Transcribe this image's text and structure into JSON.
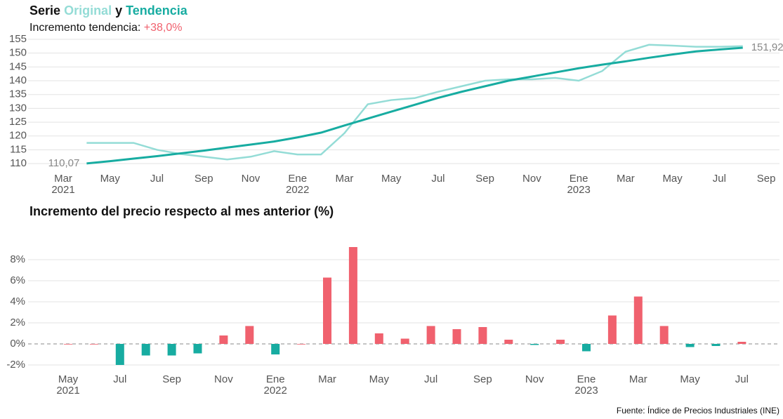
{
  "chart_data": [
    {
      "type": "line",
      "title": [
        "Serie",
        "Original",
        "y",
        "Tendencia"
      ],
      "subtitle": [
        "Incremento tendencia:",
        "+38,0%"
      ],
      "categories": [
        "Mar 2021",
        null,
        "May",
        null,
        "Jul",
        null,
        "Sep",
        null,
        "Nov",
        null,
        "Ene 2022",
        null,
        "Mar",
        null,
        "May",
        null,
        "Jul",
        null,
        "Sep",
        null,
        "Nov",
        null,
        "Ene 2023",
        null,
        "Mar",
        null,
        "May",
        null,
        "Jul",
        null,
        "Sep"
      ],
      "series": [
        {
          "name": "Original",
          "color": "#94dcd6",
          "values": [
            null,
            117.5,
            117.5,
            117.5,
            115,
            113.5,
            112.5,
            111.5,
            112.5,
            114.5,
            113.3,
            113.3,
            121,
            131.5,
            133,
            133.7,
            136,
            138,
            140,
            140.5,
            140.5,
            141,
            140,
            143.5,
            150.5,
            153,
            152.7,
            152.3,
            152.3,
            152.5,
            null
          ]
        },
        {
          "name": "Tendencia",
          "color": "#17aca1",
          "values": [
            null,
            110.07,
            110.9,
            111.8,
            112.7,
            113.7,
            114.7,
            115.8,
            116.9,
            118,
            119.5,
            121.2,
            123.8,
            126.3,
            128.8,
            131.3,
            133.8,
            136,
            138,
            140,
            141.5,
            143,
            144.5,
            145.8,
            147,
            148.3,
            149.5,
            150.6,
            151.3,
            151.92,
            null
          ],
          "value_labels": [
            null,
            "110,07",
            null,
            null,
            null,
            null,
            null,
            null,
            null,
            null,
            null,
            null,
            null,
            null,
            null,
            null,
            null,
            null,
            null,
            null,
            null,
            null,
            null,
            null,
            null,
            null,
            null,
            null,
            null,
            "151,92",
            null
          ]
        }
      ],
      "ylim": [
        108,
        156
      ],
      "yticks": [
        110,
        115,
        120,
        125,
        130,
        135,
        140,
        145,
        150,
        155
      ],
      "grid": true
    },
    {
      "type": "bar",
      "title": "Incremento del precio respecto al mes anterior (%)",
      "categories": [
        "May 2021",
        null,
        "Jul",
        null,
        "Sep",
        null,
        "Nov",
        null,
        "Ene 2022",
        null,
        "Mar",
        null,
        "May",
        null,
        "Jul",
        null,
        "Sep",
        null,
        "Nov",
        null,
        "Ene 2023",
        null,
        "Mar",
        null,
        "May",
        null,
        "Jul"
      ],
      "values": [
        0,
        0,
        -2.0,
        -1.1,
        -1.1,
        -0.9,
        0.8,
        1.7,
        -1.0,
        0,
        6.3,
        9.2,
        1.0,
        0.5,
        1.7,
        1.4,
        1.6,
        0.4,
        -0.1,
        0.4,
        -0.7,
        2.7,
        4.5,
        1.7,
        -0.3,
        -0.2,
        0.2
      ],
      "colors": {
        "positive": "#f0616e",
        "negative": "#17aca1"
      },
      "ylim": [
        -2.4,
        9.6
      ],
      "yticks": [
        {
          "value": -2,
          "label": "-2%"
        },
        {
          "value": 0,
          "label": "0%"
        },
        {
          "value": 2,
          "label": "2%"
        },
        {
          "value": 4,
          "label": "4%"
        },
        {
          "value": 6,
          "label": "6%"
        },
        {
          "value": 8,
          "label": "8%"
        }
      ],
      "grid": true
    }
  ],
  "source": "Fuente: Índice de Precios Industriales (INE)"
}
